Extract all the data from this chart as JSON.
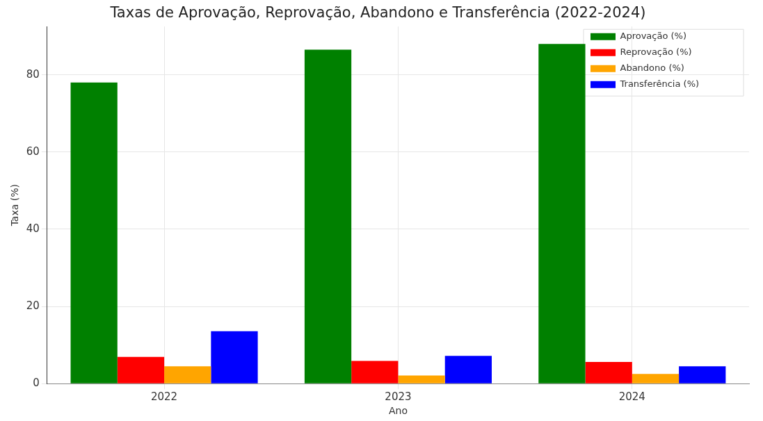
{
  "chart_data": {
    "type": "bar",
    "title": "Taxas de Aprovação, Reprovação, Abandono e Transferência (2022-2024)",
    "xlabel": "Ano",
    "ylabel": "Taxa (%)",
    "categories": [
      "2022",
      "2023",
      "2024"
    ],
    "series": [
      {
        "name": "Aprovação (%)",
        "color": "#008000",
        "values": [
          78.0,
          86.5,
          88.0
        ]
      },
      {
        "name": "Reprovação (%)",
        "color": "#ff0000",
        "values": [
          6.9,
          5.9,
          5.6
        ]
      },
      {
        "name": "Abandono (%)",
        "color": "#ffa500",
        "values": [
          4.5,
          2.1,
          2.5
        ]
      },
      {
        "name": "Transferência (%)",
        "color": "#0000ff",
        "values": [
          13.6,
          7.2,
          4.5
        ]
      }
    ],
    "ylim": [
      0,
      92.5
    ],
    "yticks": [
      0,
      20,
      40,
      60,
      80
    ],
    "grid": true,
    "legend": "top right"
  }
}
